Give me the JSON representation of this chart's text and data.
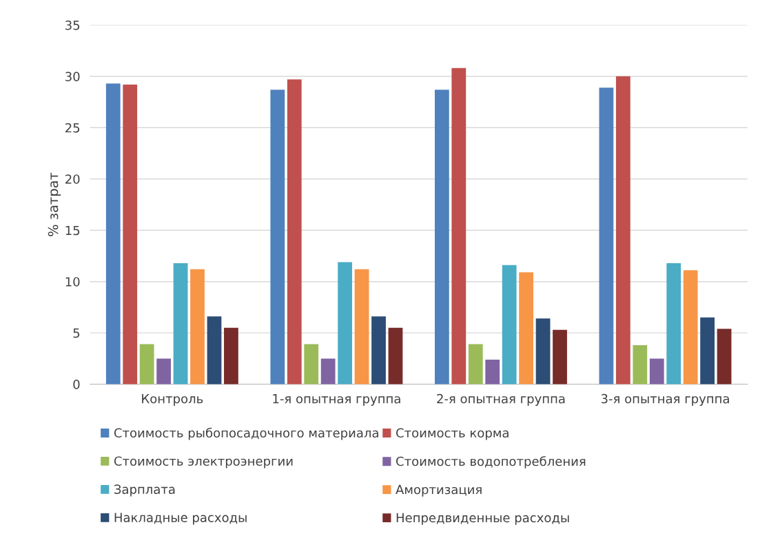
{
  "chart_data": {
    "type": "bar",
    "ylabel": "% затрат",
    "categories": [
      "Контроль",
      "1-я опытная группа",
      "2-я опытная группа",
      "3-я опытная группа"
    ],
    "series": [
      {
        "name": "Стоимость рыбопосадочного материала",
        "color": "#4f81bd",
        "values": [
          29.3,
          28.7,
          28.7,
          28.9
        ]
      },
      {
        "name": "Стоимость корма",
        "color": "#c0504d",
        "values": [
          29.2,
          29.7,
          30.8,
          30.0
        ]
      },
      {
        "name": "Стоимость электроэнергии",
        "color": "#9bbb59",
        "values": [
          3.9,
          3.9,
          3.9,
          3.8
        ]
      },
      {
        "name": "Стоимость водопотребления",
        "color": "#8064a2",
        "values": [
          2.5,
          2.5,
          2.4,
          2.5
        ]
      },
      {
        "name": "Зарплата",
        "color": "#4bacc6",
        "values": [
          11.8,
          11.9,
          11.6,
          11.8
        ]
      },
      {
        "name": "Амортизация",
        "color": "#f79646",
        "values": [
          11.2,
          11.2,
          10.9,
          11.1
        ]
      },
      {
        "name": "Накладные расходы",
        "color": "#2c4d75",
        "values": [
          6.6,
          6.6,
          6.4,
          6.5
        ]
      },
      {
        "name": "Непредвиденные расходы",
        "color": "#772c2a",
        "values": [
          5.5,
          5.5,
          5.3,
          5.4
        ]
      }
    ],
    "ylim": [
      0,
      35
    ],
    "yticks": [
      0,
      5,
      10,
      15,
      20,
      25,
      30,
      35
    ],
    "grid": "y",
    "legend": "bottom"
  }
}
